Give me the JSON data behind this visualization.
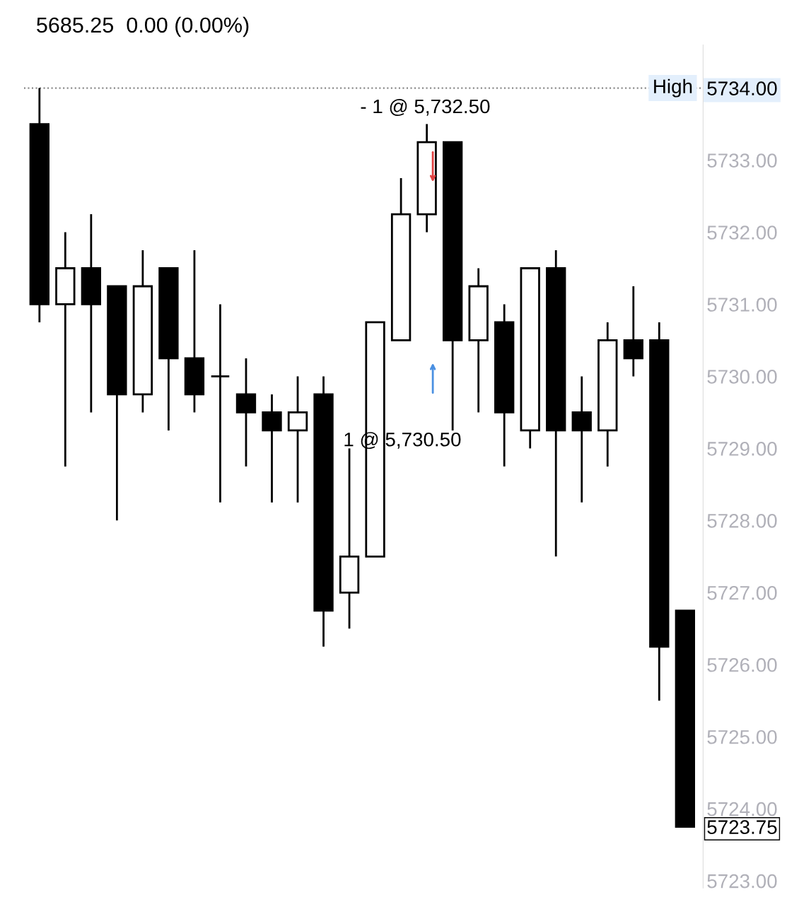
{
  "chart_data": {
    "type": "candlestick",
    "title": "5685.25  0.00 (0.00%)",
    "categories": [
      null,
      null,
      null,
      null,
      null,
      null,
      null,
      null,
      null,
      null,
      null,
      null,
      null,
      null,
      null,
      null,
      null,
      null,
      null,
      null,
      null,
      null,
      null,
      null,
      null,
      null
    ],
    "ohlc": [
      [
        5733.5,
        5734.0,
        5730.75,
        5731.0
      ],
      [
        5731.0,
        5732.0,
        5728.75,
        5731.5
      ],
      [
        5731.5,
        5732.25,
        5729.5,
        5731.0
      ],
      [
        5731.25,
        5731.25,
        5728.0,
        5729.75
      ],
      [
        5729.75,
        5731.75,
        5729.5,
        5731.25
      ],
      [
        5731.5,
        5731.5,
        5729.25,
        5730.25
      ],
      [
        5730.25,
        5731.75,
        5729.5,
        5729.75
      ],
      [
        5730.0,
        5731.0,
        5728.25,
        5730.0
      ],
      [
        5729.75,
        5730.25,
        5728.75,
        5729.5
      ],
      [
        5729.5,
        5729.75,
        5728.25,
        5729.25
      ],
      [
        5729.25,
        5730.0,
        5728.25,
        5729.5
      ],
      [
        5729.75,
        5730.0,
        5726.25,
        5726.75
      ],
      [
        5727.0,
        5729.0,
        5726.5,
        5727.5
      ],
      [
        5727.5,
        5730.75,
        5727.5,
        5730.75
      ],
      [
        5730.5,
        5732.75,
        5730.5,
        5732.25
      ],
      [
        5732.25,
        5733.5,
        5732.0,
        5733.25
      ],
      [
        5733.25,
        5733.25,
        5729.25,
        5730.5
      ],
      [
        5730.5,
        5731.5,
        5729.5,
        5731.25
      ],
      [
        5730.75,
        5731.0,
        5728.75,
        5729.5
      ],
      [
        5729.25,
        5731.5,
        5729.0,
        5731.5
      ],
      [
        5731.5,
        5731.75,
        5727.5,
        5729.25
      ],
      [
        5729.5,
        5730.0,
        5728.25,
        5729.25
      ],
      [
        5729.25,
        5730.75,
        5728.75,
        5730.5
      ],
      [
        5730.5,
        5731.25,
        5730.0,
        5730.25
      ],
      [
        5730.5,
        5730.75,
        5725.5,
        5726.25
      ],
      [
        5726.75,
        5726.75,
        5723.75,
        5723.75
      ]
    ],
    "ylim": [
      5722.9,
      5734.6
    ],
    "yticks": [
      {
        "value": 5723,
        "label": "5723.00"
      },
      {
        "value": 5724,
        "label": "5724.00"
      },
      {
        "value": 5725,
        "label": "5725.00"
      },
      {
        "value": 5726,
        "label": "5726.00"
      },
      {
        "value": 5727,
        "label": "5727.00"
      },
      {
        "value": 5728,
        "label": "5728.00"
      },
      {
        "value": 5729,
        "label": "5729.00"
      },
      {
        "value": 5730,
        "label": "5730.00"
      },
      {
        "value": 5731,
        "label": "5731.00"
      },
      {
        "value": 5732,
        "label": "5732.00"
      },
      {
        "value": 5733,
        "label": "5733.00"
      },
      {
        "value": 5734,
        "label": "5734.00"
      },
      {
        "value": 5723.75,
        "label": "5723.75"
      }
    ],
    "tick_labels": "y",
    "grid": false,
    "ref_lines": [
      {
        "axis": "y",
        "value": 5734.0,
        "label": "High",
        "line_style": "dotted",
        "color": "#888888"
      }
    ],
    "annotations": [
      "- 1 @ 5,732.50",
      "1 @ 5,730.50"
    ]
  }
}
